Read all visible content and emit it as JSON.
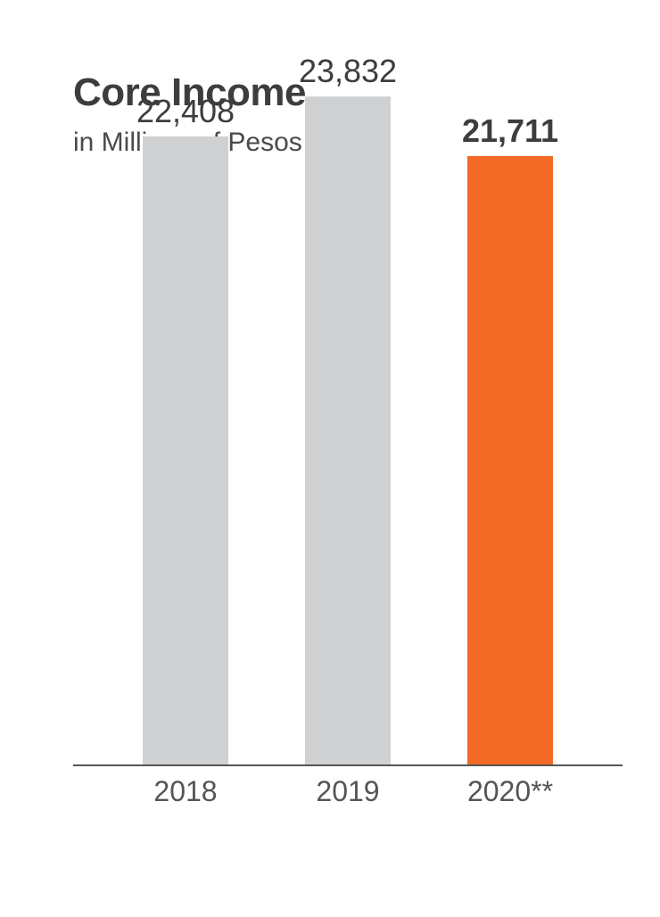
{
  "chart_data": {
    "type": "bar",
    "title": "Core Income",
    "subtitle": "in Millions of Pesos",
    "categories": [
      "2018",
      "2019",
      "2020**"
    ],
    "values": [
      22408,
      23832,
      21711
    ],
    "value_labels": [
      "22,408",
      "23,832",
      "21,711"
    ],
    "highlight_index": 2,
    "ylim": [
      0,
      26000
    ],
    "grid": false,
    "legend": "none",
    "colors": {
      "default_bar": "#cfd0d2",
      "highlight_bar": "#f26a26",
      "axis": "#555555",
      "text": "#3d3d3d"
    }
  }
}
